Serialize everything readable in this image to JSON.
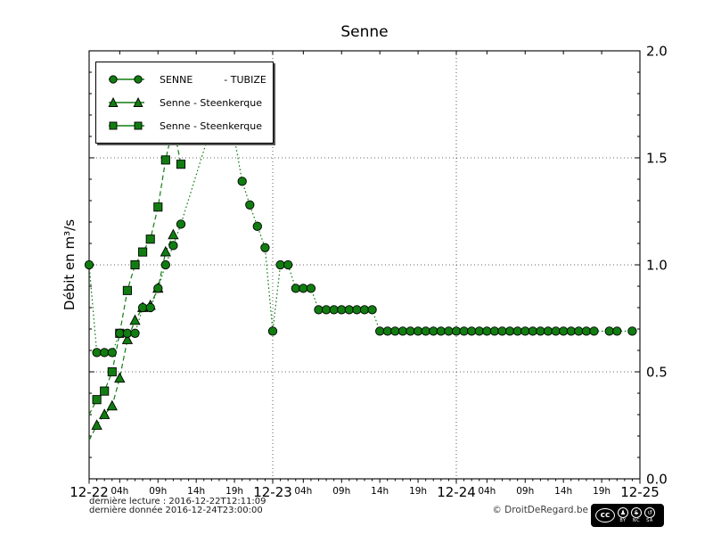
{
  "title": "Senne",
  "ylabel": "Débit en m³/s",
  "legend": {
    "entries": [
      {
        "label": "SENNE          - TUBIZE",
        "marker": "circle"
      },
      {
        "label": "Senne - Steenkerque",
        "marker": "triangle"
      },
      {
        "label": "Senne - Steenkerque",
        "marker": "square"
      }
    ]
  },
  "footer": {
    "last_reading": "dernière lecture : 2016-12-22T12:11:09",
    "last_data": "dernière donnée  2016-12-24T23:00:00",
    "copyright": "© DroitDeRegard.be",
    "license": {
      "cc": "cc",
      "by": "BY",
      "nc": "NC",
      "sa": "SA",
      "by_glyph": "♟",
      "nc_glyph": "$",
      "sa_glyph": "↺"
    }
  },
  "colors": {
    "series_green": "#117d11",
    "marker_edge": "#000000",
    "grid": "#000000"
  },
  "chart_data": {
    "type": "line",
    "title": "Senne",
    "ylabel": "Débit en m³/s",
    "x_unit": "hours since 2016-12-22 00:00",
    "x_range": [
      0,
      72
    ],
    "ylim": [
      0.0,
      2.0
    ],
    "y_ticks": [
      0.0,
      0.5,
      1.0,
      1.5,
      2.0
    ],
    "y_tick_labels": [
      "0.0",
      "0.5",
      "1.0",
      "1.5",
      "2.0"
    ],
    "y_tick_side": "right",
    "grid": {
      "y_values": [
        0.5,
        1.0,
        1.5
      ],
      "x_values": [
        24,
        48
      ]
    },
    "day_ticks": [
      {
        "x": 0,
        "label": "12-22"
      },
      {
        "x": 24,
        "label": "12-23"
      },
      {
        "x": 48,
        "label": "12-24"
      },
      {
        "x": 72,
        "label": "12-25"
      }
    ],
    "hour_ticks": [
      {
        "x": 4,
        "label": "04h"
      },
      {
        "x": 9,
        "label": "09h"
      },
      {
        "x": 14,
        "label": "14h"
      },
      {
        "x": 19,
        "label": "19h"
      },
      {
        "x": 28,
        "label": "04h"
      },
      {
        "x": 33,
        "label": "09h"
      },
      {
        "x": 38,
        "label": "14h"
      },
      {
        "x": 43,
        "label": "19h"
      },
      {
        "x": 52,
        "label": "04h"
      },
      {
        "x": 57,
        "label": "09h"
      },
      {
        "x": 62,
        "label": "14h"
      },
      {
        "x": 67,
        "label": "19h"
      }
    ],
    "series": [
      {
        "name": "SENNE - TUBIZE",
        "marker": "circle",
        "line_style": "dotted",
        "zorder": 3,
        "points": [
          [
            0,
            1.0
          ],
          [
            1,
            0.59
          ],
          [
            2,
            0.59
          ],
          [
            3,
            0.59
          ],
          [
            4,
            0.68
          ],
          [
            5,
            0.68
          ],
          [
            6,
            0.68
          ],
          [
            7,
            0.8
          ],
          [
            8,
            0.8
          ],
          [
            9,
            0.89
          ],
          [
            10,
            1.0
          ],
          [
            11,
            1.09
          ],
          [
            12,
            1.19
          ],
          [
            16,
            1.65
          ],
          [
            17,
            1.65
          ],
          [
            18,
            1.64
          ],
          [
            19,
            1.59
          ],
          [
            20,
            1.39
          ],
          [
            21,
            1.28
          ],
          [
            22,
            1.18
          ],
          [
            23,
            1.08
          ],
          [
            24,
            0.69
          ],
          [
            25,
            1.0
          ],
          [
            26,
            1.0
          ],
          [
            27,
            0.89
          ],
          [
            28,
            0.89
          ],
          [
            29,
            0.89
          ],
          [
            30,
            0.79
          ],
          [
            31,
            0.79
          ],
          [
            32,
            0.79
          ],
          [
            33,
            0.79
          ],
          [
            34,
            0.79
          ],
          [
            35,
            0.79
          ],
          [
            36,
            0.79
          ],
          [
            37,
            0.79
          ],
          [
            38,
            0.69
          ],
          [
            39,
            0.69
          ],
          [
            40,
            0.69
          ],
          [
            41,
            0.69
          ],
          [
            42,
            0.69
          ],
          [
            43,
            0.69
          ],
          [
            44,
            0.69
          ],
          [
            45,
            0.69
          ],
          [
            46,
            0.69
          ],
          [
            47,
            0.69
          ],
          [
            48,
            0.69
          ],
          [
            49,
            0.69
          ],
          [
            50,
            0.69
          ],
          [
            51,
            0.69
          ],
          [
            52,
            0.69
          ],
          [
            53,
            0.69
          ],
          [
            54,
            0.69
          ],
          [
            55,
            0.69
          ],
          [
            56,
            0.69
          ],
          [
            57,
            0.69
          ],
          [
            58,
            0.69
          ],
          [
            59,
            0.69
          ],
          [
            60,
            0.69
          ],
          [
            61,
            0.69
          ],
          [
            62,
            0.69
          ],
          [
            63,
            0.69
          ],
          [
            64,
            0.69
          ],
          [
            65,
            0.69
          ],
          [
            66,
            0.69
          ],
          [
            68,
            0.69
          ],
          [
            69,
            0.69
          ],
          [
            71,
            0.69
          ]
        ]
      },
      {
        "name": "Senne - Steenkerque",
        "marker": "triangle",
        "line_style": "dashed",
        "zorder": 2,
        "line_lead_in": [
          [
            0,
            0.18
          ]
        ],
        "points": [
          [
            1,
            0.25
          ],
          [
            2,
            0.3
          ],
          [
            3,
            0.34
          ],
          [
            4,
            0.47
          ],
          [
            5,
            0.65
          ],
          [
            6,
            0.74
          ],
          [
            7,
            0.8
          ],
          [
            8,
            0.81
          ],
          [
            9,
            0.89
          ],
          [
            10,
            1.06
          ],
          [
            11,
            1.14
          ]
        ]
      },
      {
        "name": "Senne - Steenkerque",
        "marker": "square",
        "line_style": "dashed",
        "zorder": 1,
        "line_lead_in": [
          [
            0,
            0.3
          ]
        ],
        "points": [
          [
            1,
            0.37
          ],
          [
            2,
            0.41
          ],
          [
            3,
            0.5
          ],
          [
            4,
            0.68
          ],
          [
            5,
            0.88
          ],
          [
            6,
            1.0
          ],
          [
            7,
            1.06
          ],
          [
            8,
            1.12
          ],
          [
            9,
            1.27
          ],
          [
            10,
            1.49
          ],
          [
            11,
            1.65
          ],
          [
            12,
            1.47
          ]
        ]
      }
    ]
  }
}
